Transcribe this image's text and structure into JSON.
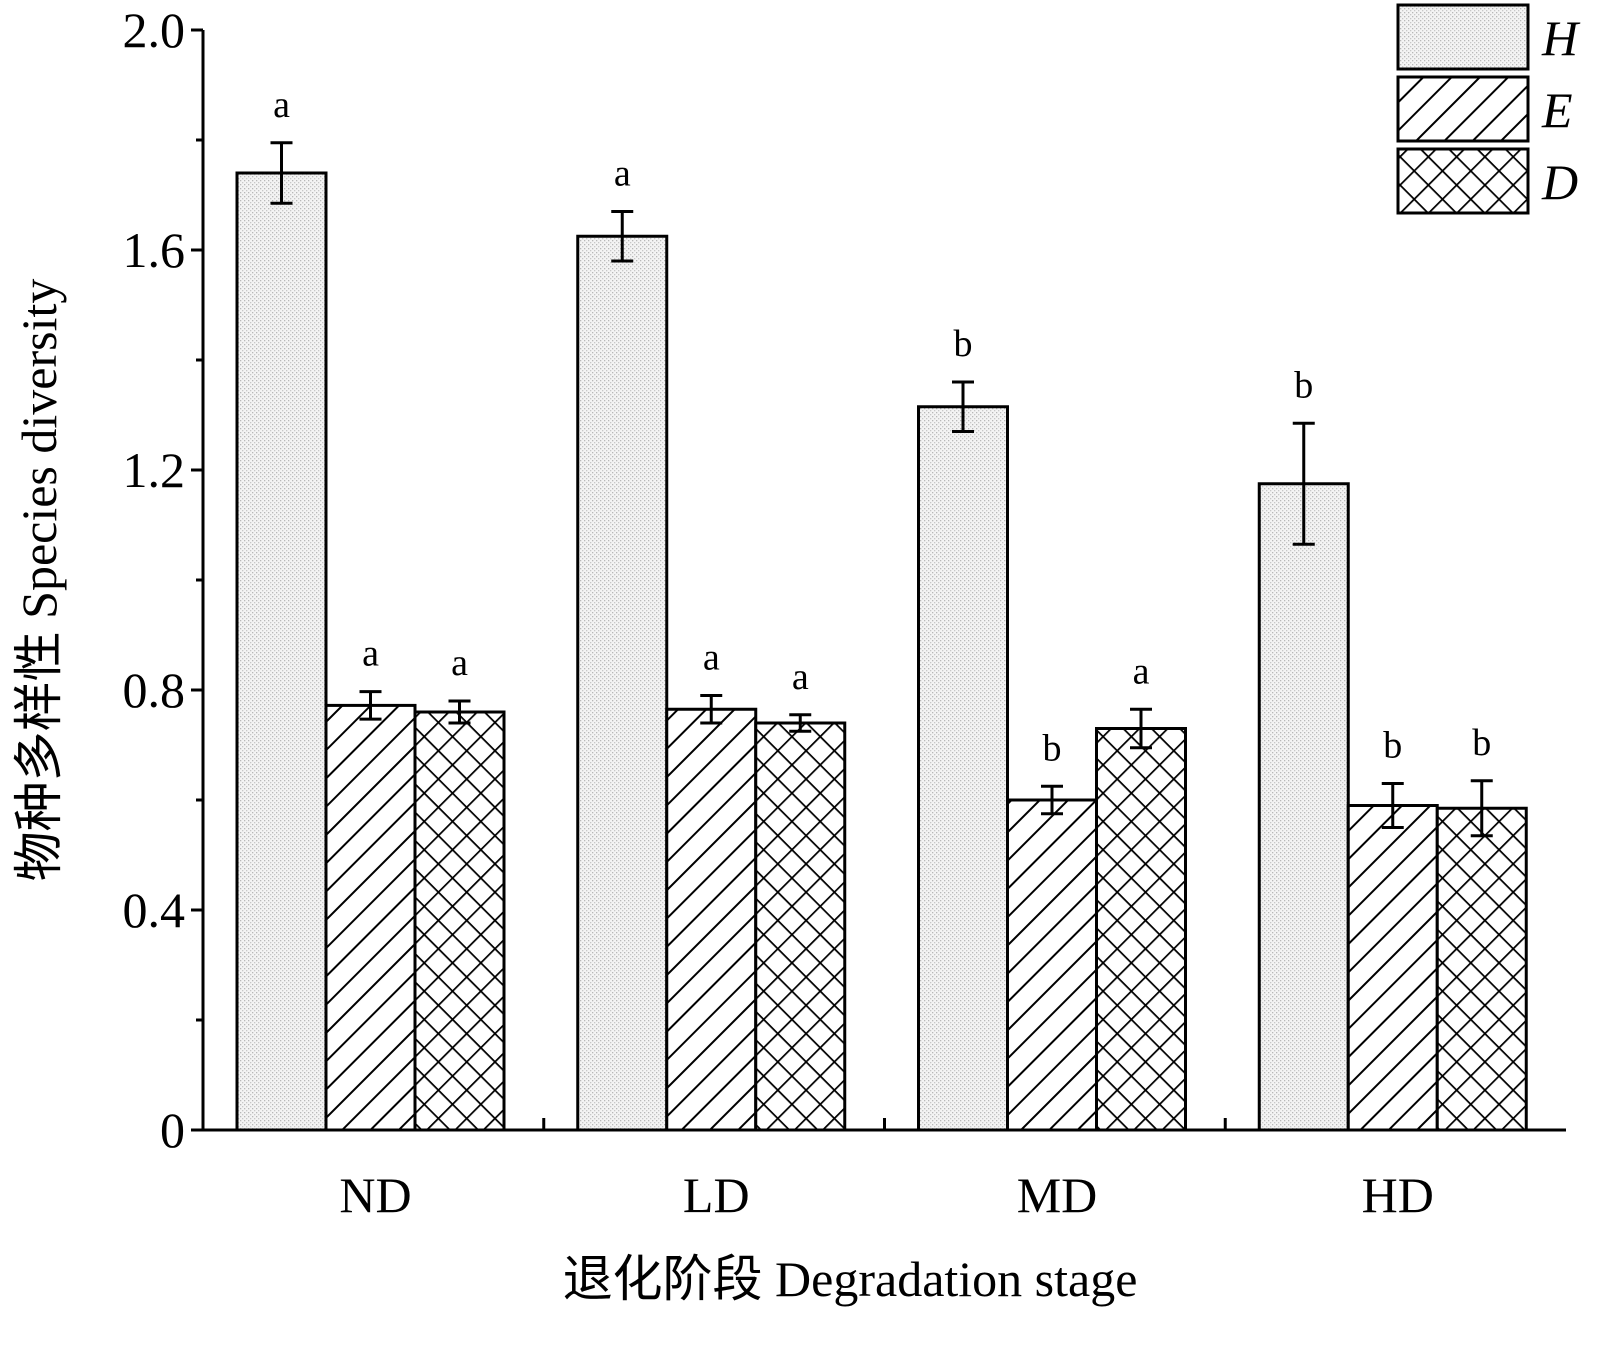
{
  "chart_data": {
    "type": "bar",
    "xlabel": "退化阶段 Degradation stage",
    "ylabel": "物种多样性 Species diversity",
    "ylim": [
      0,
      2.0
    ],
    "yticks": [
      "0",
      "0.4",
      "0.8",
      "1.2",
      "1.6",
      "2.0"
    ],
    "ytick_values": [
      0,
      0.4,
      0.8,
      1.2,
      1.6,
      2.0
    ],
    "categories": [
      "ND",
      "LD",
      "MD",
      "HD"
    ],
    "legend_position": "top-right",
    "grid": false,
    "series": [
      {
        "name": "H",
        "pattern": "dots",
        "values": [
          1.74,
          1.625,
          1.315,
          1.175
        ],
        "errors": [
          0.055,
          0.045,
          0.045,
          0.11
        ],
        "significance": [
          "a",
          "a",
          "b",
          "b"
        ]
      },
      {
        "name": "E",
        "pattern": "diagonal",
        "values": [
          0.772,
          0.765,
          0.6,
          0.59
        ],
        "errors": [
          0.025,
          0.025,
          0.025,
          0.04
        ],
        "significance": [
          "a",
          "a",
          "b",
          "b"
        ]
      },
      {
        "name": "D",
        "pattern": "crosshatch",
        "values": [
          0.76,
          0.74,
          0.73,
          0.585
        ],
        "errors": [
          0.02,
          0.015,
          0.035,
          0.05
        ],
        "significance": [
          "a",
          "a",
          "a",
          "b"
        ]
      }
    ]
  }
}
